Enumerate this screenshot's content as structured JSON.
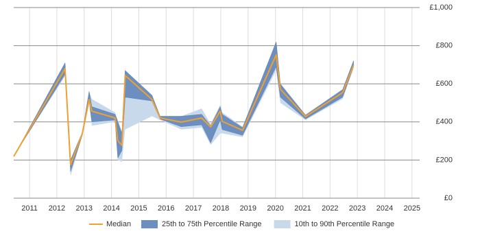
{
  "chart_data": {
    "type": "line",
    "x": [
      2010.42,
      2012.3,
      2012.5,
      2012.93,
      2013.18,
      2013.28,
      2014.13,
      2014.23,
      2014.38,
      2014.5,
      2015.48,
      2015.78,
      2016.55,
      2017.3,
      2017.63,
      2017.98,
      2018.05,
      2018.8,
      2020.03,
      2020.18,
      2021.1,
      2022.46,
      2022.86
    ],
    "series": [
      {
        "name": "Median",
        "color": "#f0a030",
        "values": [
          219,
          680,
          176,
          338,
          518,
          457,
          421,
          302,
          277,
          644,
          518,
          421,
          399,
          421,
          374,
          457,
          403,
          356,
          752,
          572,
          428,
          554,
          698
        ]
      }
    ],
    "bands": [
      {
        "name": "25th to 75th Percentile Range",
        "color": "#6d8fbf",
        "lower": [
          219,
          650,
          140,
          330,
          510,
          400,
          410,
          210,
          250,
          530,
          510,
          415,
          375,
          385,
          290,
          410,
          360,
          330,
          690,
          530,
          415,
          530,
          690
        ],
        "upper": [
          219,
          710,
          200,
          345,
          560,
          480,
          440,
          400,
          340,
          670,
          540,
          430,
          430,
          440,
          380,
          480,
          440,
          370,
          820,
          600,
          435,
          570,
          720
        ]
      },
      {
        "name": "10th to 90th Percentile Range",
        "color": "#c8d9ec",
        "lower": [
          219,
          640,
          115,
          330,
          500,
          380,
          400,
          200,
          190,
          360,
          430,
          410,
          360,
          370,
          280,
          340,
          340,
          320,
          670,
          500,
          410,
          520,
          680
        ],
        "upper": [
          219,
          710,
          200,
          345,
          560,
          520,
          450,
          410,
          350,
          670,
          540,
          430,
          430,
          470,
          390,
          490,
          450,
          375,
          820,
          600,
          440,
          570,
          725
        ]
      }
    ],
    "xlim": [
      2010.42,
      2025.28
    ],
    "xticks": [
      2011,
      2012,
      2013,
      2014,
      2015,
      2016,
      2017,
      2018,
      2019,
      2020,
      2021,
      2022,
      2023,
      2024,
      2025
    ],
    "ylim": [
      0,
      1000
    ],
    "yticks": [
      {
        "value": 0,
        "label": "£0"
      },
      {
        "value": 200,
        "label": "£200"
      },
      {
        "value": 400,
        "label": "£400"
      },
      {
        "value": 600,
        "label": "£600"
      },
      {
        "value": 800,
        "label": "£800"
      },
      {
        "value": 1000,
        "label": "£1,000"
      }
    ],
    "y_axis_side": "right",
    "grid": true
  }
}
